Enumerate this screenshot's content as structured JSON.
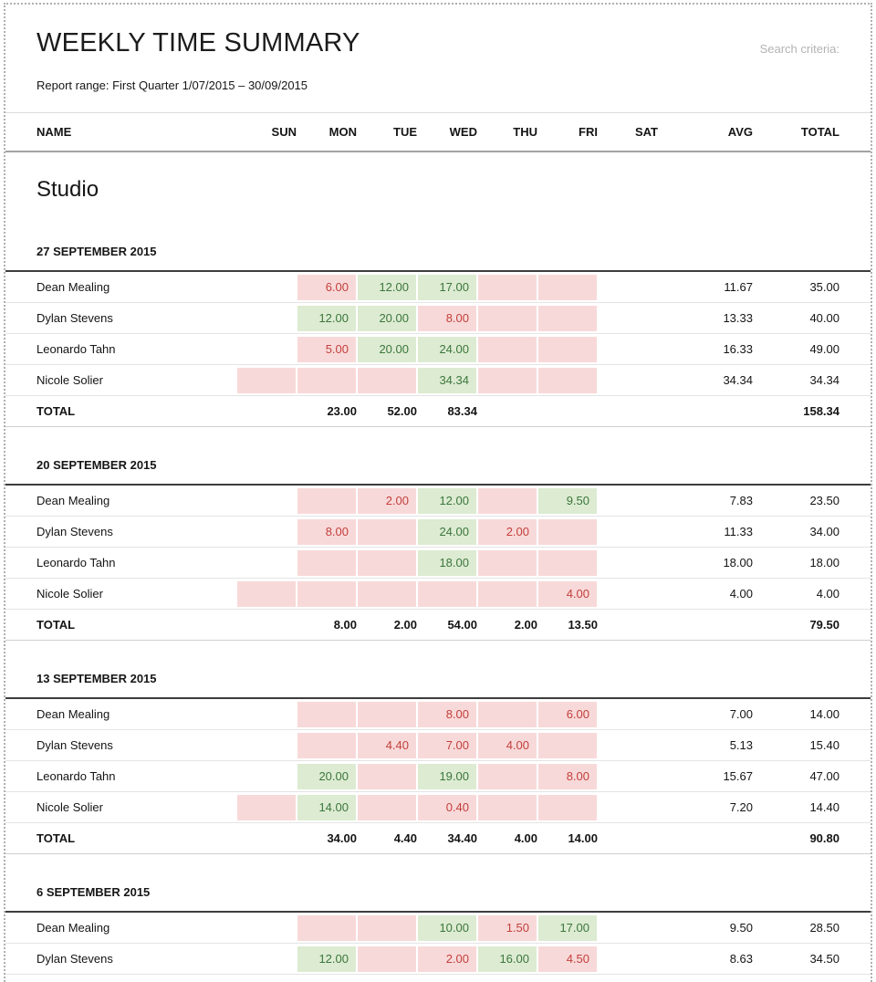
{
  "page": {
    "title": "WEEKLY TIME SUMMARY",
    "search_label": "Search criteria:",
    "report_range": "Report range: First Quarter 1/07/2015 – 30/09/2015",
    "group_title": "Studio"
  },
  "columns": [
    "NAME",
    "SUN",
    "MON",
    "TUE",
    "WED",
    "THU",
    "FRI",
    "SAT",
    "AVG",
    "TOTAL"
  ],
  "colors": {
    "red_bg": "#f8d9d9",
    "red_text": "#c2403c",
    "green_bg": "#dcebd1",
    "green_text": "#3c763d"
  },
  "weeks": [
    {
      "date": "27 SEPTEMBER 2015",
      "rows": [
        {
          "name": "Dean Mealing",
          "days": [
            null,
            {
              "v": "6.00",
              "s": "red"
            },
            {
              "v": "12.00",
              "s": "green"
            },
            {
              "v": "17.00",
              "s": "green"
            },
            {
              "v": "",
              "s": "red"
            },
            {
              "v": "",
              "s": "red"
            },
            null
          ],
          "avg": "11.67",
          "total": "35.00"
        },
        {
          "name": "Dylan Stevens",
          "days": [
            null,
            {
              "v": "12.00",
              "s": "green"
            },
            {
              "v": "20.00",
              "s": "green"
            },
            {
              "v": "8.00",
              "s": "red"
            },
            {
              "v": "",
              "s": "red"
            },
            {
              "v": "",
              "s": "red"
            },
            null
          ],
          "avg": "13.33",
          "total": "40.00"
        },
        {
          "name": "Leonardo Tahn",
          "days": [
            null,
            {
              "v": "5.00",
              "s": "red"
            },
            {
              "v": "20.00",
              "s": "green"
            },
            {
              "v": "24.00",
              "s": "green"
            },
            {
              "v": "",
              "s": "red"
            },
            {
              "v": "",
              "s": "red"
            },
            null
          ],
          "avg": "16.33",
          "total": "49.00"
        },
        {
          "name": "Nicole Solier",
          "days": [
            {
              "v": "",
              "s": "red"
            },
            {
              "v": "",
              "s": "red"
            },
            {
              "v": "",
              "s": "red"
            },
            {
              "v": "34.34",
              "s": "green"
            },
            {
              "v": "",
              "s": "red"
            },
            {
              "v": "",
              "s": "red"
            },
            null
          ],
          "avg": "34.34",
          "total": "34.34"
        }
      ],
      "totals": {
        "label": "TOTAL",
        "days": [
          "",
          "23.00",
          "52.00",
          "83.34",
          "",
          "",
          ""
        ],
        "avg": "",
        "total": "158.34"
      }
    },
    {
      "date": "20 SEPTEMBER 2015",
      "rows": [
        {
          "name": "Dean Mealing",
          "days": [
            null,
            {
              "v": "",
              "s": "red"
            },
            {
              "v": "2.00",
              "s": "red"
            },
            {
              "v": "12.00",
              "s": "green"
            },
            {
              "v": "",
              "s": "red"
            },
            {
              "v": "9.50",
              "s": "green"
            },
            null
          ],
          "avg": "7.83",
          "total": "23.50"
        },
        {
          "name": "Dylan Stevens",
          "days": [
            null,
            {
              "v": "8.00",
              "s": "red"
            },
            {
              "v": "",
              "s": "red"
            },
            {
              "v": "24.00",
              "s": "green"
            },
            {
              "v": "2.00",
              "s": "red"
            },
            {
              "v": "",
              "s": "red"
            },
            null
          ],
          "avg": "11.33",
          "total": "34.00"
        },
        {
          "name": "Leonardo Tahn",
          "days": [
            null,
            {
              "v": "",
              "s": "red"
            },
            {
              "v": "",
              "s": "red"
            },
            {
              "v": "18.00",
              "s": "green"
            },
            {
              "v": "",
              "s": "red"
            },
            {
              "v": "",
              "s": "red"
            },
            null
          ],
          "avg": "18.00",
          "total": "18.00"
        },
        {
          "name": "Nicole Solier",
          "days": [
            {
              "v": "",
              "s": "red"
            },
            {
              "v": "",
              "s": "red"
            },
            {
              "v": "",
              "s": "red"
            },
            {
              "v": "",
              "s": "red"
            },
            {
              "v": "",
              "s": "red"
            },
            {
              "v": "4.00",
              "s": "red"
            },
            null
          ],
          "avg": "4.00",
          "total": "4.00"
        }
      ],
      "totals": {
        "label": "TOTAL",
        "days": [
          "",
          "8.00",
          "2.00",
          "54.00",
          "2.00",
          "13.50",
          ""
        ],
        "avg": "",
        "total": "79.50"
      }
    },
    {
      "date": "13 SEPTEMBER 2015",
      "rows": [
        {
          "name": "Dean Mealing",
          "days": [
            null,
            {
              "v": "",
              "s": "red"
            },
            {
              "v": "",
              "s": "red"
            },
            {
              "v": "8.00",
              "s": "red"
            },
            {
              "v": "",
              "s": "red"
            },
            {
              "v": "6.00",
              "s": "red"
            },
            null
          ],
          "avg": "7.00",
          "total": "14.00"
        },
        {
          "name": "Dylan Stevens",
          "days": [
            null,
            {
              "v": "",
              "s": "red"
            },
            {
              "v": "4.40",
              "s": "red"
            },
            {
              "v": "7.00",
              "s": "red"
            },
            {
              "v": "4.00",
              "s": "red"
            },
            {
              "v": "",
              "s": "red"
            },
            null
          ],
          "avg": "5.13",
          "total": "15.40"
        },
        {
          "name": "Leonardo Tahn",
          "days": [
            null,
            {
              "v": "20.00",
              "s": "green"
            },
            {
              "v": "",
              "s": "red"
            },
            {
              "v": "19.00",
              "s": "green"
            },
            {
              "v": "",
              "s": "red"
            },
            {
              "v": "8.00",
              "s": "red"
            },
            null
          ],
          "avg": "15.67",
          "total": "47.00"
        },
        {
          "name": "Nicole Solier",
          "days": [
            {
              "v": "",
              "s": "red"
            },
            {
              "v": "14.00",
              "s": "green"
            },
            {
              "v": "",
              "s": "red"
            },
            {
              "v": "0.40",
              "s": "red"
            },
            {
              "v": "",
              "s": "red"
            },
            {
              "v": "",
              "s": "red"
            },
            null
          ],
          "avg": "7.20",
          "total": "14.40"
        }
      ],
      "totals": {
        "label": "TOTAL",
        "days": [
          "",
          "34.00",
          "4.40",
          "34.40",
          "4.00",
          "14.00",
          ""
        ],
        "avg": "",
        "total": "90.80"
      }
    },
    {
      "date": "6 SEPTEMBER 2015",
      "rows": [
        {
          "name": "Dean Mealing",
          "days": [
            null,
            {
              "v": "",
              "s": "red"
            },
            {
              "v": "",
              "s": "red"
            },
            {
              "v": "10.00",
              "s": "green"
            },
            {
              "v": "1.50",
              "s": "red"
            },
            {
              "v": "17.00",
              "s": "green"
            },
            null
          ],
          "avg": "9.50",
          "total": "28.50"
        },
        {
          "name": "Dylan Stevens",
          "days": [
            null,
            {
              "v": "12.00",
              "s": "green"
            },
            {
              "v": "",
              "s": "red"
            },
            {
              "v": "2.00",
              "s": "red"
            },
            {
              "v": "16.00",
              "s": "green"
            },
            {
              "v": "4.50",
              "s": "red"
            },
            null
          ],
          "avg": "8.63",
          "total": "34.50"
        }
      ],
      "totals": null
    }
  ]
}
